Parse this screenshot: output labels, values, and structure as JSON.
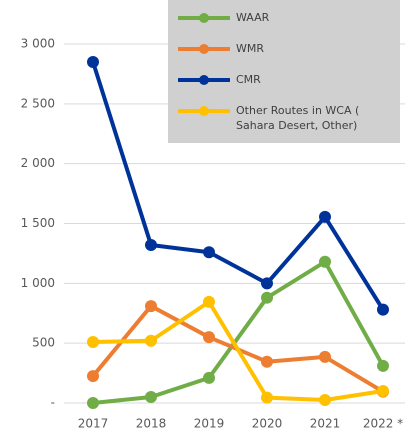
{
  "chart_data": {
    "type": "line",
    "categories": [
      "2017",
      "2018",
      "2019",
      "2020",
      "2021",
      "2022 *"
    ],
    "series": [
      {
        "name": "WAAR",
        "color": "#70ad47",
        "values": [
          0,
          50,
          210,
          880,
          1180,
          310
        ]
      },
      {
        "name": "WMR",
        "color": "#ed7d31",
        "values": [
          225,
          810,
          550,
          345,
          385,
          95
        ]
      },
      {
        "name": "CMR",
        "color": "#003399",
        "values": [
          2850,
          1320,
          1260,
          1000,
          1555,
          780
        ]
      },
      {
        "name": "Other Routes in WCA ( Sahara Desert, Other)",
        "color": "#ffc000",
        "values": [
          510,
          520,
          845,
          45,
          25,
          100
        ]
      }
    ],
    "ylim": [
      0,
      3000
    ],
    "yticks": [
      {
        "value": 0,
        "label": "-"
      },
      500,
      {
        "value": 1000,
        "label": "1 000"
      },
      {
        "value": 1500,
        "label": "1 500"
      },
      {
        "value": 2000,
        "label": "2 000"
      },
      {
        "value": 2500,
        "label": "2 500"
      },
      {
        "value": 3000,
        "label": "3 000"
      }
    ],
    "grid": true,
    "legend": "top-right"
  }
}
